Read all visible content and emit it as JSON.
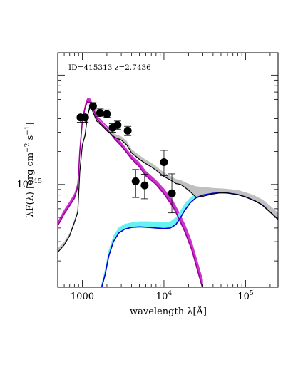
{
  "chart_data": {
    "type": "scatter",
    "title": "ID=415313 z=2.7436",
    "xlabel": "wavelength λ[Å]",
    "ylabel_main": "λF(λ) [erg cm",
    "ylabel_sup1": "−2",
    "ylabel_mid": " s",
    "ylabel_sup2": "−1",
    "ylabel_end": "]",
    "x_scale": "log",
    "y_scale": "log",
    "xlim": [
      500,
      250000
    ],
    "ylim": [
      1.15e-16,
      1.6e-14
    ],
    "x_ticks": [
      {
        "value": 1000,
        "base": "1000",
        "exp": ""
      },
      {
        "value": 10000,
        "base": "10",
        "exp": "4"
      },
      {
        "value": 100000,
        "base": "10",
        "exp": "5"
      }
    ],
    "y_ticks": [
      {
        "value": 1e-15,
        "base": "10",
        "exp": "−15"
      }
    ],
    "grid": false,
    "legend": "none",
    "colors": {
      "total": "#000000",
      "total_band": "#c0c0c0",
      "stellar": "#990099",
      "stellar_band": "#cc33cc",
      "agn": "#0000cc",
      "agn_band": "#66f2f2",
      "points": "#000000"
    },
    "observations": [
      {
        "x": 950,
        "y": 4.1e-15,
        "yerr": [
          3.7e-15,
          4.5e-15
        ]
      },
      {
        "x": 1080,
        "y": 4.1e-15,
        "yerr": [
          3.7e-15,
          4.5e-15
        ]
      },
      {
        "x": 1350,
        "y": 5.2e-15,
        "yerr": [
          4.8e-15,
          5.6e-15
        ]
      },
      {
        "x": 1650,
        "y": 4.5e-15,
        "yerr": [
          4.2e-15,
          4.9e-15
        ]
      },
      {
        "x": 2000,
        "y": 4.4e-15,
        "yerr": [
          4.1e-15,
          4.8e-15
        ]
      },
      {
        "x": 2350,
        "y": 3.3e-15,
        "yerr": [
          3e-15,
          3.6e-15
        ]
      },
      {
        "x": 2700,
        "y": 3.5e-15,
        "yerr": [
          3.2e-15,
          3.8e-15
        ]
      },
      {
        "x": 3600,
        "y": 3.1e-15,
        "yerr": [
          2.8e-15,
          3.4e-15
        ]
      },
      {
        "x": 4500,
        "y": 1.07e-15,
        "yerr": [
          7.6e-16,
          1.37e-15
        ]
      },
      {
        "x": 5800,
        "y": 9.8e-16,
        "yerr": [
          7.4e-16,
          1.24e-15
        ]
      },
      {
        "x": 10000,
        "y": 1.6e-15,
        "yerr": [
          1.2e-15,
          2.05e-15
        ]
      },
      {
        "x": 12500,
        "y": 8.3e-16,
        "yerr": [
          5.5e-16,
          1.25e-15
        ]
      }
    ],
    "series": [
      {
        "role": "stellar",
        "x": [
          500,
          600,
          700,
          800,
          880,
          930,
          1000,
          1080,
          1150,
          1250,
          1350,
          1500,
          1700,
          2000,
          2500,
          3000,
          3500,
          4000,
          5000,
          6000,
          8000,
          10000,
          13000,
          15000,
          18000,
          22000,
          26000,
          30000
        ],
        "y_lo": [
          4.2e-16,
          5.4e-16,
          6.4e-16,
          7.5e-16,
          9.5e-16,
          2e-15,
          3.8e-15,
          5e-15,
          5.7e-15,
          5.6e-15,
          5e-15,
          4e-15,
          3.6e-15,
          3.2e-15,
          2.6e-15,
          2.25e-15,
          1.95e-15,
          1.72e-15,
          1.45e-15,
          1.2e-15,
          1e-15,
          8.2e-16,
          6.2e-16,
          5e-16,
          3.7e-16,
          2.5e-16,
          1.6e-16,
          1.1e-16
        ],
        "y_hi": [
          4.6e-16,
          5.9e-16,
          7e-16,
          8.3e-16,
          1.05e-15,
          2.2e-15,
          4.1e-15,
          5.4e-15,
          6.2e-15,
          6.1e-15,
          5.4e-15,
          4.3e-15,
          3.9e-15,
          3.45e-15,
          2.85e-15,
          2.45e-15,
          2.12e-15,
          1.87e-15,
          1.6e-15,
          1.33e-15,
          1.1e-15,
          9.2e-16,
          7.1e-16,
          5.8e-16,
          4.4e-16,
          3e-16,
          1.95e-16,
          1.35e-16
        ]
      },
      {
        "role": "agn",
        "x": [
          1700,
          1900,
          2100,
          2400,
          2800,
          3300,
          4000,
          5000,
          6500,
          8000,
          10000,
          12000,
          14000,
          16000,
          18000,
          21000,
          25000,
          30000,
          40000,
          50000,
          60000,
          80000,
          100000,
          130000,
          160000,
          200000,
          250000
        ],
        "y_lo": [
          1.1e-16,
          1.5e-16,
          2.2e-16,
          3e-16,
          3.6e-16,
          3.9e-16,
          4.05e-16,
          4.1e-16,
          4.05e-16,
          4e-16,
          3.95e-16,
          4e-16,
          4.3e-16,
          5e-16,
          5.8e-16,
          6.8e-16,
          7.6e-16,
          8e-16,
          8.3e-16,
          8.4e-16,
          8.35e-16,
          8.1e-16,
          7.7e-16,
          7.1e-16,
          6.5e-16,
          5.6e-16,
          4.8e-16
        ],
        "y_hi": [
          1.2e-16,
          1.7e-16,
          2.5e-16,
          3.4e-16,
          4.05e-16,
          4.35e-16,
          4.5e-16,
          4.6e-16,
          4.6e-16,
          4.55e-16,
          4.5e-16,
          4.6e-16,
          5e-16,
          5.8e-16,
          6.7e-16,
          7.6e-16,
          8.3e-16,
          8.7e-16,
          9e-16,
          9.1e-16,
          9.05e-16,
          8.8e-16,
          8.4e-16,
          7.8e-16,
          7.2e-16,
          6.3e-16,
          5.4e-16
        ]
      },
      {
        "role": "total",
        "x": [
          500,
          600,
          700,
          800,
          880,
          930,
          1000,
          1080,
          1150,
          1250,
          1350,
          1500,
          1700,
          2000,
          2500,
          3000,
          3500,
          4000,
          5000,
          6000,
          7000,
          8000,
          10000,
          12000,
          14000,
          16000,
          18000,
          21000,
          25000,
          30000,
          40000,
          50000,
          60000,
          80000,
          100000,
          130000,
          160000,
          200000,
          250000
        ],
        "y_lo": [
          2.4e-16,
          2.8e-16,
          3.4e-16,
          4.5e-16,
          5.6e-16,
          1.3e-15,
          2.3e-15,
          2.8e-15,
          4.1e-15,
          5.3e-15,
          4.6e-15,
          3.8e-15,
          3.5e-15,
          3.1e-15,
          2.7e-15,
          2.55e-15,
          2.3e-15,
          1.95e-15,
          1.7e-15,
          1.55e-15,
          1.45e-15,
          1.35e-15,
          1.18e-15,
          1.1e-15,
          1.02e-15,
          1e-15,
          9.4e-16,
          8.6e-16,
          7.6e-16,
          7.8e-16,
          8.2e-16,
          8.4e-16,
          8.35e-16,
          8.1e-16,
          7.7e-16,
          7.1e-16,
          6.5e-16,
          5.6e-16,
          4.8e-16
        ],
        "y_hi": [
          2.6e-16,
          3e-16,
          3.6e-16,
          4.8e-16,
          6e-16,
          1.4e-15,
          2.45e-15,
          3e-15,
          4.4e-15,
          5.7e-15,
          5e-15,
          4.1e-15,
          3.75e-15,
          3.35e-15,
          2.9e-15,
          2.75e-15,
          2.5e-15,
          2.1e-15,
          1.85e-15,
          1.68e-15,
          1.58e-15,
          1.47e-15,
          1.28e-15,
          1.2e-15,
          1.12e-15,
          1.1e-15,
          1.05e-15,
          1e-15,
          9.6e-16,
          9.5e-16,
          9.3e-16,
          9.2e-16,
          9.1e-16,
          8.9e-16,
          8.5e-16,
          7.9e-16,
          7.3e-16,
          6.4e-16,
          5.5e-16
        ]
      }
    ]
  }
}
